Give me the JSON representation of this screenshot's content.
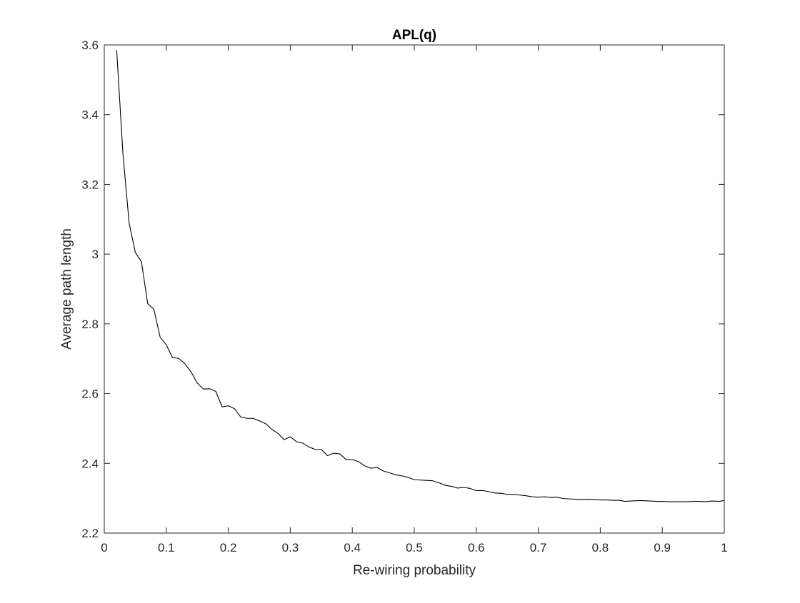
{
  "chart_data": {
    "type": "line",
    "title": "APL(q)",
    "xlabel": "Re-wiring probability",
    "ylabel": "Average path length",
    "xlim": [
      0,
      1
    ],
    "ylim": [
      2.2,
      3.6
    ],
    "xticks": [
      0,
      0.1,
      0.2,
      0.3,
      0.4,
      0.5,
      0.6,
      0.7,
      0.8,
      0.9,
      1
    ],
    "xtick_labels": [
      "0",
      "0.1",
      "0.2",
      "0.3",
      "0.4",
      "0.5",
      "0.6",
      "0.7",
      "0.8",
      "0.9",
      "1"
    ],
    "yticks": [
      2.2,
      2.4,
      2.6,
      2.8,
      3.0,
      3.2,
      3.4,
      3.6
    ],
    "ytick_labels": [
      "2.2",
      "2.4",
      "2.6",
      "2.8",
      "3",
      "3.2",
      "3.4",
      "3.6"
    ],
    "grid": false,
    "line_color": "#000000",
    "series": [
      {
        "x": [
          0.02,
          0.03,
          0.04,
          0.05,
          0.06,
          0.07,
          0.08,
          0.09,
          0.1,
          0.11,
          0.12,
          0.13,
          0.14,
          0.15,
          0.16,
          0.17,
          0.18,
          0.19,
          0.2,
          0.21,
          0.22,
          0.23,
          0.24,
          0.25,
          0.26,
          0.27,
          0.28,
          0.29,
          0.3,
          0.31,
          0.32,
          0.33,
          0.34,
          0.35,
          0.36,
          0.37,
          0.38,
          0.39,
          0.4,
          0.41,
          0.42,
          0.43,
          0.44,
          0.45,
          0.46,
          0.47,
          0.48,
          0.49,
          0.5,
          0.51,
          0.52,
          0.53,
          0.54,
          0.55,
          0.56,
          0.57,
          0.58,
          0.59,
          0.6,
          0.61,
          0.62,
          0.63,
          0.64,
          0.65,
          0.66,
          0.67,
          0.68,
          0.69,
          0.7,
          0.71,
          0.72,
          0.73,
          0.74,
          0.75,
          0.76,
          0.77,
          0.78,
          0.79,
          0.8,
          0.81,
          0.82,
          0.83,
          0.84,
          0.85,
          0.86,
          0.87,
          0.88,
          0.89,
          0.9,
          0.91,
          0.92,
          0.93,
          0.94,
          0.95,
          0.96,
          0.97,
          0.98,
          0.99,
          1.0
        ],
        "values": [
          3.585,
          3.29,
          3.09,
          3.005,
          2.978,
          2.858,
          2.842,
          2.762,
          2.74,
          2.703,
          2.701,
          2.686,
          2.662,
          2.63,
          2.613,
          2.614,
          2.606,
          2.562,
          2.565,
          2.557,
          2.533,
          2.529,
          2.529,
          2.522,
          2.514,
          2.498,
          2.486,
          2.468,
          2.476,
          2.462,
          2.458,
          2.447,
          2.44,
          2.44,
          2.422,
          2.429,
          2.427,
          2.411,
          2.411,
          2.405,
          2.393,
          2.386,
          2.388,
          2.378,
          2.373,
          2.367,
          2.364,
          2.36,
          2.353,
          2.352,
          2.351,
          2.35,
          2.344,
          2.337,
          2.334,
          2.329,
          2.331,
          2.328,
          2.322,
          2.322,
          2.319,
          2.315,
          2.314,
          2.311,
          2.311,
          2.309,
          2.307,
          2.304,
          2.303,
          2.304,
          2.302,
          2.303,
          2.299,
          2.298,
          2.297,
          2.296,
          2.297,
          2.296,
          2.295,
          2.295,
          2.294,
          2.294,
          2.291,
          2.292,
          2.293,
          2.293,
          2.292,
          2.291,
          2.291,
          2.29,
          2.29,
          2.29,
          2.29,
          2.291,
          2.291,
          2.29,
          2.292,
          2.291,
          2.293
        ]
      }
    ]
  }
}
